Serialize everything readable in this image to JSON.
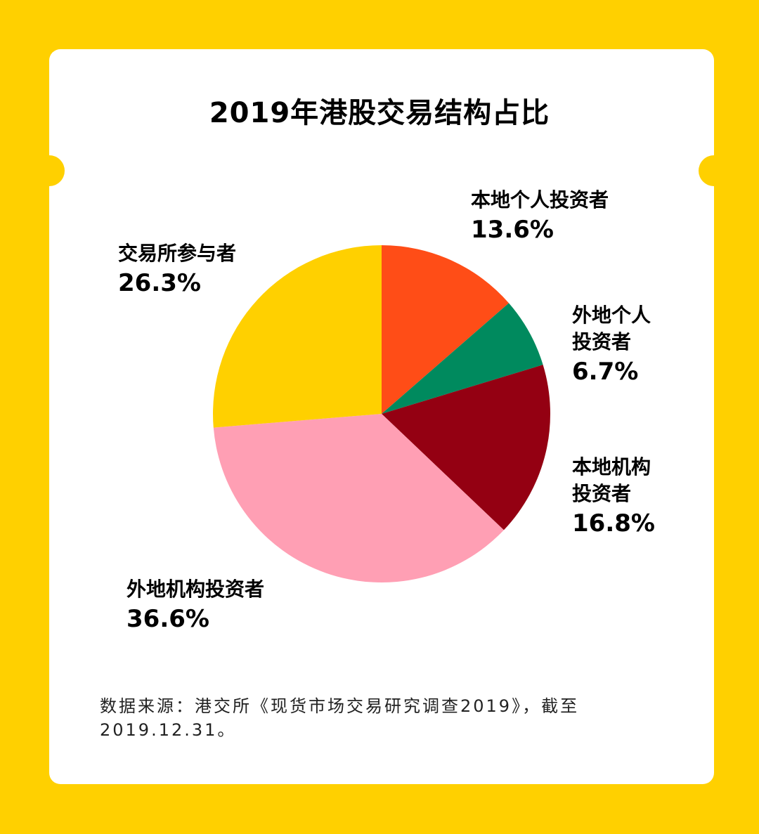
{
  "chart_data": {
    "type": "pie",
    "title": "2019年港股交易结构占比",
    "slices": [
      {
        "label": "本地个人投资者",
        "value": 13.6,
        "value_label": "13.6%",
        "color": "#FF4D17"
      },
      {
        "label": "外地个人\n投资者",
        "value": 6.7,
        "value_label": "6.7%",
        "color": "#008A5E"
      },
      {
        "label": "本地机构\n投资者",
        "value": 16.8,
        "value_label": "16.8%",
        "color": "#940012"
      },
      {
        "label": "外地机构投资者",
        "value": 36.6,
        "value_label": "36.6%",
        "color": "#FF9FB4"
      },
      {
        "label": "交易所参与者",
        "value": 26.3,
        "value_label": "26.3%",
        "color": "#FFD000"
      }
    ]
  },
  "source_note": "数据来源：港交所《现货市场交易研究调查2019》，截至2019.12.31。",
  "colors": {
    "background": "#FFD000",
    "card": "#FFFFFF"
  }
}
